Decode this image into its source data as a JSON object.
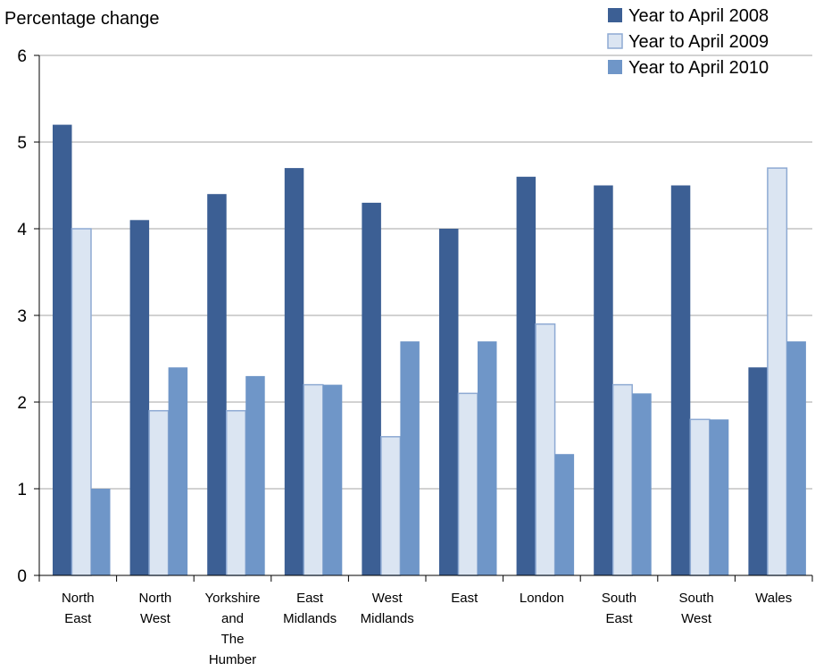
{
  "chart_data": {
    "type": "bar",
    "ylabel": "Percentage change",
    "xlabel": "",
    "ylim": [
      0,
      6
    ],
    "yticks": [
      0,
      1,
      2,
      3,
      4,
      5,
      6
    ],
    "grid": true,
    "legend_position": "top-right",
    "categories": [
      [
        "North",
        "East"
      ],
      [
        "North",
        "West"
      ],
      [
        "Yorkshire",
        "and",
        "The",
        "Humber"
      ],
      [
        "East",
        "Midlands"
      ],
      [
        "West",
        "Midlands"
      ],
      [
        "East"
      ],
      [
        "London"
      ],
      [
        "South",
        "East"
      ],
      [
        "South",
        "West"
      ],
      [
        "Wales"
      ]
    ],
    "series": [
      {
        "name": "Year to April 2008",
        "color": "#3c5f94",
        "values": [
          5.2,
          4.1,
          4.4,
          4.7,
          4.3,
          4.0,
          4.6,
          4.5,
          4.5,
          2.4
        ]
      },
      {
        "name": "Year to April 2009",
        "color": "#dbe5f2",
        "values": [
          4.0,
          1.9,
          1.9,
          2.2,
          1.6,
          2.1,
          2.9,
          2.2,
          1.8,
          4.7
        ]
      },
      {
        "name": "Year to April 2010",
        "color": "#6f96c8",
        "values": [
          1.0,
          2.4,
          2.3,
          2.2,
          2.7,
          2.7,
          1.4,
          2.1,
          1.8,
          2.7
        ]
      }
    ]
  }
}
